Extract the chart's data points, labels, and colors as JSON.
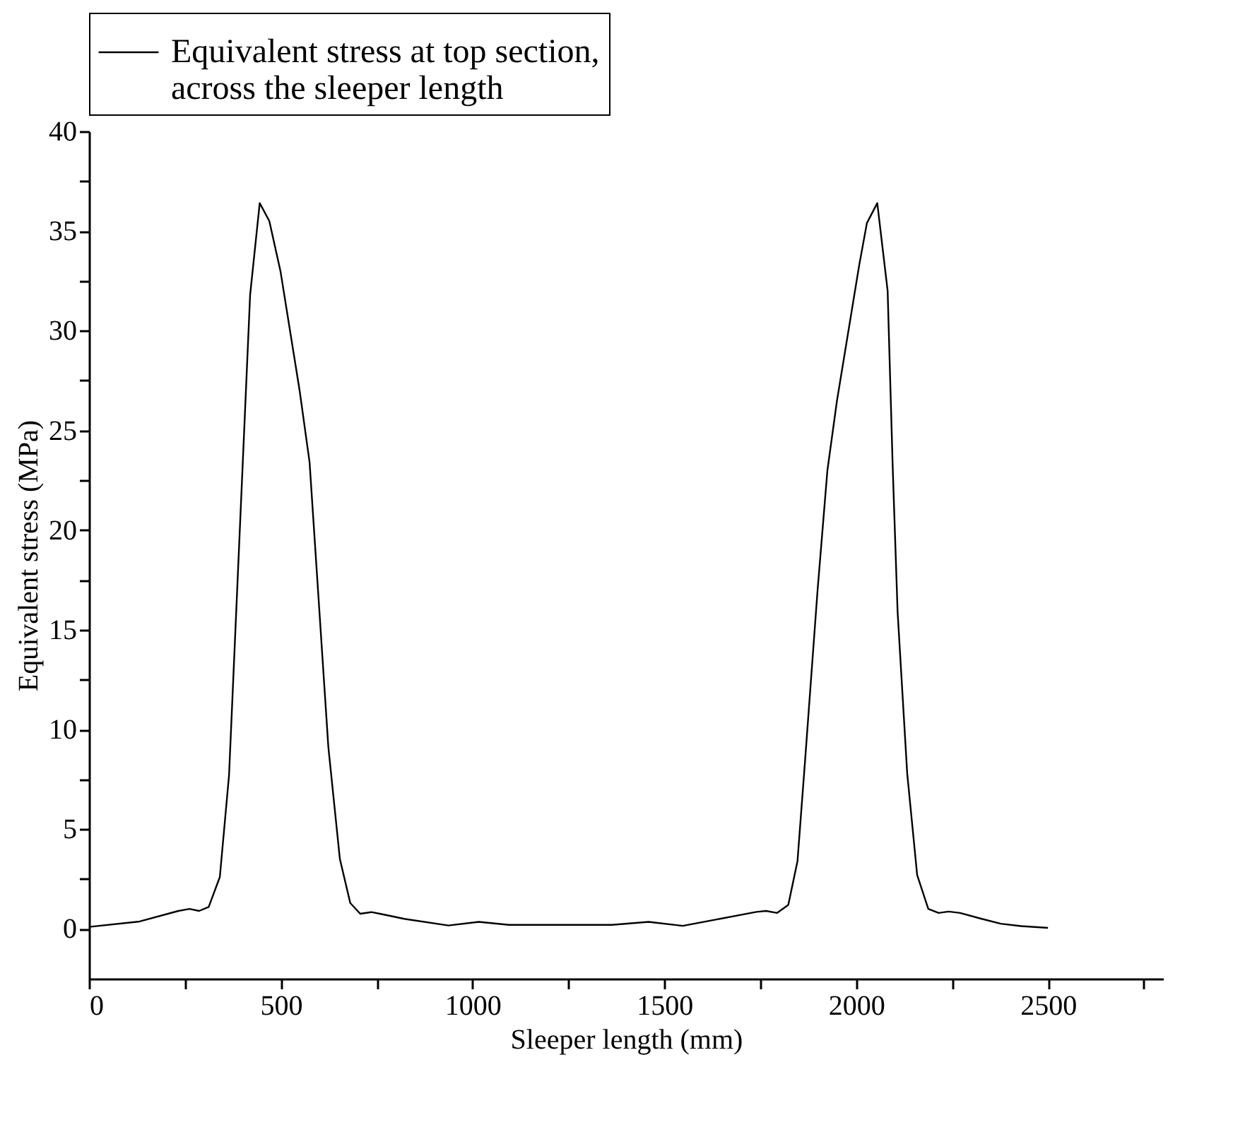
{
  "chart_data": {
    "type": "line",
    "xlabel": "Sleeper length (mm)",
    "ylabel": "Equivalent stress (MPa)",
    "series": [
      {
        "name": "Equivalent stress at top section, across the sleeper length",
        "color": "#000000",
        "x": [
          0,
          132,
          233,
          262,
          287,
          312,
          341,
          365,
          420,
          445,
          470,
          499,
          549,
          575,
          624,
          654,
          681,
          707,
          736,
          765,
          822,
          937,
          1016,
          1095,
          1229,
          1363,
          1459,
          1548,
          1638,
          1740,
          1765,
          1794,
          1823,
          1847,
          1867,
          1899,
          1925,
          1950,
          2008,
          2028,
          2055,
          2082,
          2095,
          2108,
          2133,
          2159,
          2188,
          2215,
          2241,
          2271,
          2324,
          2377,
          2430,
          2500
        ],
        "values": [
          0.1,
          0.37,
          0.9,
          1.0,
          0.9,
          1.1,
          2.6,
          7.7,
          31.8,
          36.4,
          35.5,
          33,
          27,
          23.4,
          9.1,
          3.5,
          1.3,
          0.76,
          0.84,
          0.73,
          0.5,
          0.17,
          0.35,
          0.2,
          0.2,
          0.2,
          0.35,
          0.15,
          0.48,
          0.85,
          0.9,
          0.8,
          1.2,
          3.4,
          8.5,
          16.9,
          23,
          26.5,
          33.3,
          35.4,
          36.4,
          32,
          23.3,
          15.9,
          7.8,
          2.7,
          1.0,
          0.8,
          0.87,
          0.8,
          0.52,
          0.26,
          0.14,
          0.05
        ]
      }
    ],
    "xlim": [
      0,
      2800
    ],
    "ylim": [
      -2.5,
      40
    ],
    "xticks": [
      0,
      {
        "value": 250,
        "label": null
      },
      500,
      {
        "value": 750,
        "label": null
      },
      1000,
      {
        "value": 1250,
        "label": null
      },
      1500,
      {
        "value": 1750,
        "label": null
      },
      2000,
      {
        "value": 2250,
        "label": null
      },
      2500,
      {
        "value": 2750,
        "label": null
      }
    ],
    "yticks": [
      0,
      {
        "value": 2.5,
        "label": null
      },
      5,
      {
        "value": 7.5,
        "label": null
      },
      10,
      {
        "value": 12.5,
        "label": null
      },
      15,
      {
        "value": 17.5,
        "label": null
      },
      20,
      {
        "value": 22.5,
        "label": null
      },
      25,
      {
        "value": 27.5,
        "label": null
      },
      30,
      {
        "value": 32.5,
        "label": null
      },
      35,
      {
        "value": 37.5,
        "label": null
      },
      40
    ],
    "legend": "top",
    "grid": false,
    "marker": "none",
    "line_style": "solid"
  }
}
